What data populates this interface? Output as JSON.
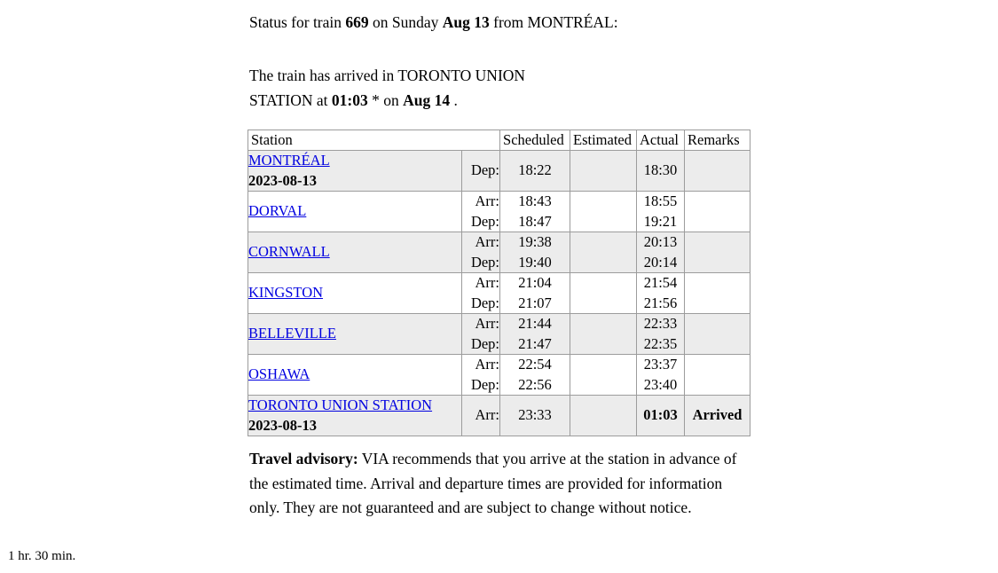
{
  "page": {
    "status": {
      "prefix": "Status for train ",
      "train_number": "669",
      "mid": " on Sunday ",
      "date": "Aug 13",
      "suffix": " from MONTRÉAL:"
    },
    "arrival": {
      "line1": "The train has arrived in TORONTO UNION",
      "line2_prefix": "STATION at ",
      "time": "01:03",
      "mid": " * on ",
      "date": "Aug 14",
      "suffix": " ."
    },
    "advisory": {
      "label": "Travel advisory:",
      "text": " VIA recommends that you arrive at the station in advance of the estimated time. Arrival and departure times are provided for information only. They are not guaranteed and are subject to change without notice."
    },
    "footer_note": "1 hr. 30 min."
  },
  "table": {
    "headers": [
      "Station",
      "Scheduled",
      "Estimated",
      "Actual",
      "Remarks"
    ],
    "rows": [
      {
        "station": "MONTRÉAL",
        "date": "2023-08-13",
        "labels": [
          "Dep:"
        ],
        "scheduled": [
          "18:22"
        ],
        "estimated": [],
        "actual": [
          "18:30"
        ],
        "actual_bold": false,
        "remarks": "",
        "shaded": true
      },
      {
        "station": "DORVAL",
        "date": "",
        "labels": [
          "Arr:",
          "Dep:"
        ],
        "scheduled": [
          "18:43",
          "18:47"
        ],
        "estimated": [],
        "actual": [
          "18:55",
          "19:21"
        ],
        "actual_bold": false,
        "remarks": "",
        "shaded": false
      },
      {
        "station": "CORNWALL",
        "date": "",
        "labels": [
          "Arr:",
          "Dep:"
        ],
        "scheduled": [
          "19:38",
          "19:40"
        ],
        "estimated": [],
        "actual": [
          "20:13",
          "20:14"
        ],
        "actual_bold": false,
        "remarks": "",
        "shaded": true
      },
      {
        "station": "KINGSTON",
        "date": "",
        "labels": [
          "Arr:",
          "Dep:"
        ],
        "scheduled": [
          "21:04",
          "21:07"
        ],
        "estimated": [],
        "actual": [
          "21:54",
          "21:56"
        ],
        "actual_bold": false,
        "remarks": "",
        "shaded": false
      },
      {
        "station": "BELLEVILLE",
        "date": "",
        "labels": [
          "Arr:",
          "Dep:"
        ],
        "scheduled": [
          "21:44",
          "21:47"
        ],
        "estimated": [],
        "actual": [
          "22:33",
          "22:35"
        ],
        "actual_bold": false,
        "remarks": "",
        "shaded": true
      },
      {
        "station": "OSHAWA",
        "date": "",
        "labels": [
          "Arr:",
          "Dep:"
        ],
        "scheduled": [
          "22:54",
          "22:56"
        ],
        "estimated": [],
        "actual": [
          "23:37",
          "23:40"
        ],
        "actual_bold": false,
        "remarks": "",
        "shaded": false
      },
      {
        "station": "TORONTO UNION STATION",
        "date": "2023-08-13",
        "labels": [
          "Arr:"
        ],
        "scheduled": [
          "23:33"
        ],
        "estimated": [],
        "actual": [
          "01:03"
        ],
        "actual_bold": true,
        "remarks": "Arrived",
        "shaded": true
      }
    ]
  },
  "colors": {
    "link_blue": "#0000e0",
    "row_shaded": "#ececec",
    "cell_border": "#9c9c9c",
    "outer_border": "#767676"
  }
}
